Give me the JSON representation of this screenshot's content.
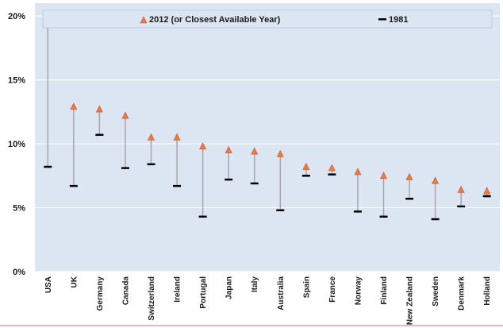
{
  "chart_data": {
    "type": "dot-range",
    "categories": [
      "USA",
      "UK",
      "Germany",
      "Canada",
      "Switzerland",
      "Ireland",
      "Portugal",
      "Japan",
      "Italy",
      "Australia",
      "Spain",
      "France",
      "Norway",
      "Finland",
      "New Zealand",
      "Sweden",
      "Denmark",
      "Holland"
    ],
    "series": [
      {
        "name": "2012 (or Closest Available Year)",
        "marker": "triangle",
        "values": [
          19.3,
          12.9,
          12.7,
          12.2,
          10.5,
          10.5,
          9.8,
          9.5,
          9.4,
          9.2,
          8.2,
          8.1,
          7.8,
          7.5,
          7.4,
          7.1,
          6.4,
          6.3
        ]
      },
      {
        "name": "1981",
        "marker": "dash",
        "values": [
          8.2,
          6.7,
          10.7,
          8.1,
          8.4,
          6.7,
          4.3,
          7.2,
          6.9,
          4.8,
          7.5,
          7.6,
          4.7,
          4.3,
          5.7,
          4.1,
          5.1,
          5.9
        ]
      }
    ],
    "y_ticks": [
      "0%",
      "5%",
      "10%",
      "15%",
      "20%"
    ],
    "y_tick_values": [
      0,
      5,
      10,
      15,
      20
    ],
    "ylim": [
      0,
      21
    ],
    "grid": true,
    "legend_position": "top",
    "title": "",
    "xlabel": "",
    "ylabel": "",
    "colors": {
      "plot_background": "#dce6f2",
      "triangle_fill": "#ed7d31",
      "triangle_stroke": "#c0504d",
      "dash": "#000000",
      "range_line": "#a6a6a6",
      "gridline": "#ffffff",
      "bottom_rule": "#e0a0b8"
    }
  }
}
